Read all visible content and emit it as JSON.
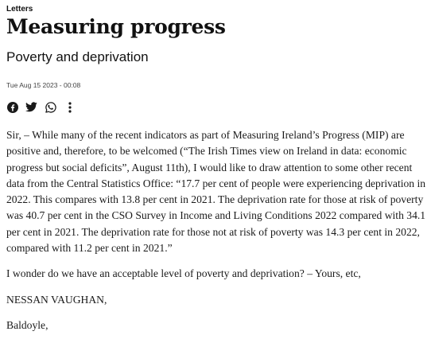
{
  "section": "Letters",
  "title": "Measuring progress",
  "subtitle": "Poverty and deprivation",
  "timestamp": "Tue Aug 15 2023 - 00:08",
  "share": {
    "icons": [
      "facebook-icon",
      "twitter-icon",
      "whatsapp-icon",
      "more-options-icon"
    ]
  },
  "body": {
    "paragraphs": [
      "Sir, – While many of the recent indicators as part of Measuring Ireland’s Progress (MIP) are positive and, therefore, to be welcomed (“The Irish Times view on Ireland in data: economic progress but social deficits”, August 11th), I would like to draw attention to some other recent data from the Central Statistics Office: “17.7 per cent of people were experiencing deprivation in 2022. This compares with 13.8 per cent in 2021. The deprivation rate for those at risk of poverty was 40.7 per cent in the CSO Survey in Income and Living Conditions 2022 compared with 34.1 per cent in 2021. The deprivation rate for those not at risk of poverty was 14.3 per cent in 2022, compared with 11.2 per cent in 2021.”",
      "I wonder do we have an acceptable level of poverty and deprivation? – Yours, etc,",
      "NESSAN VAUGHAN,",
      "Baldoyle,"
    ]
  }
}
